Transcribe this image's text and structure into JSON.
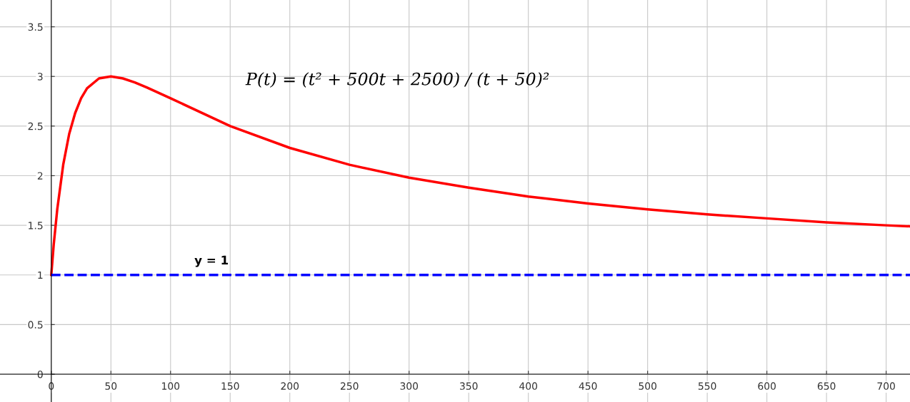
{
  "chart_data": {
    "type": "line",
    "annotations": [
      "P(t) = (t² + 500t + 2500) / (t + 50)²"
    ],
    "series": [
      {
        "color": "#ff0000",
        "x": [
          0,
          2,
          5,
          10,
          15,
          20,
          25,
          30,
          40,
          50,
          60,
          70,
          80,
          100,
          150,
          200,
          250,
          300,
          350,
          400,
          450,
          500,
          550,
          600,
          650,
          700,
          720
        ],
        "values": [
          1,
          1.3,
          1.66,
          2.11,
          2.42,
          2.63,
          2.78,
          2.88,
          2.98,
          3,
          2.98,
          2.94,
          2.89,
          2.78,
          2.5,
          2.28,
          2.11,
          1.98,
          1.88,
          1.79,
          1.72,
          1.66,
          1.61,
          1.57,
          1.53,
          1.5,
          1.49
        ]
      }
    ],
    "ref_lines": [
      {
        "axis": "y",
        "value": 1,
        "label": "y = 1",
        "color": "#0000ff",
        "line_style": "dashed"
      }
    ],
    "xlim": [
      -43,
      720
    ],
    "ylim": [
      -0.28,
      3.77
    ],
    "xticks": [
      0,
      50,
      100,
      150,
      200,
      250,
      300,
      350,
      400,
      450,
      500,
      550,
      600,
      650,
      700
    ],
    "yticks": [
      0,
      0.5,
      1,
      1.5,
      2,
      2.5,
      3,
      3.5
    ],
    "grid": true,
    "marker": "none",
    "line_style": "solid"
  }
}
